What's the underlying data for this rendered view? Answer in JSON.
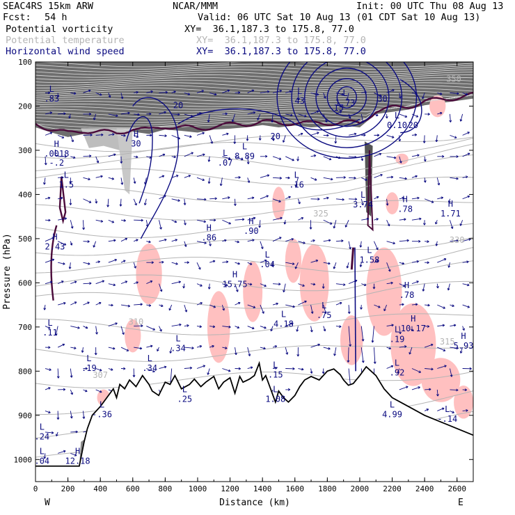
{
  "header": {
    "model": "SEAC4RS 15km ARW",
    "org": "NCAR/MMM",
    "init": "Init: 00 UTC Thu 08 Aug 13",
    "fcst_label": "Fcst:",
    "fcst_value": "54 h",
    "valid": "Valid: 06 UTC Sat 10 Aug 13 (01 CDT Sat 10 Aug 13)"
  },
  "fields": [
    {
      "name": "Potential vorticity",
      "xy": "XY=  36.1,187.3 to 175.8, 77.0",
      "color": "#000000"
    },
    {
      "name": "Potential temperature",
      "xy": "XY=  36.1,187.3 to 175.8, 77.0",
      "color": "#b4b4b4"
    },
    {
      "name": "Horizontal wind speed",
      "xy": "XY=  36.1,187.3 to 175.8, 77.0",
      "color": "#0a0a80"
    }
  ],
  "chart_data": {
    "type": "cross-section",
    "xlabel": "Distance (km)",
    "ylabel": "Pressure (hPa)",
    "xlim": [
      0,
      2700
    ],
    "ylim": [
      1050,
      100
    ],
    "x_ticks": [
      0,
      200,
      400,
      600,
      800,
      1000,
      1200,
      1400,
      1600,
      1800,
      2000,
      2200,
      2400,
      2600
    ],
    "y_ticks": [
      100,
      200,
      300,
      400,
      500,
      600,
      700,
      800,
      900,
      1000
    ],
    "end_labels": {
      "left": "W",
      "right": "E"
    },
    "terrain_profile": [
      [
        0,
        1015
      ],
      [
        270,
        1015
      ],
      [
        300,
        960
      ],
      [
        320,
        930
      ],
      [
        350,
        900
      ],
      [
        400,
        880
      ],
      [
        450,
        855
      ],
      [
        480,
        840
      ],
      [
        500,
        860
      ],
      [
        520,
        830
      ],
      [
        550,
        840
      ],
      [
        580,
        820
      ],
      [
        620,
        835
      ],
      [
        660,
        810
      ],
      [
        700,
        830
      ],
      [
        720,
        845
      ],
      [
        760,
        855
      ],
      [
        800,
        825
      ],
      [
        830,
        830
      ],
      [
        860,
        810
      ],
      [
        900,
        840
      ],
      [
        950,
        830
      ],
      [
        980,
        818
      ],
      [
        1020,
        835
      ],
      [
        1050,
        825
      ],
      [
        1100,
        812
      ],
      [
        1130,
        840
      ],
      [
        1160,
        825
      ],
      [
        1200,
        815
      ],
      [
        1230,
        850
      ],
      [
        1260,
        812
      ],
      [
        1280,
        825
      ],
      [
        1320,
        818
      ],
      [
        1350,
        810
      ],
      [
        1380,
        782
      ],
      [
        1400,
        820
      ],
      [
        1420,
        810
      ],
      [
        1450,
        840
      ],
      [
        1480,
        870
      ],
      [
        1500,
        845
      ],
      [
        1530,
        860
      ],
      [
        1560,
        870
      ],
      [
        1600,
        855
      ],
      [
        1630,
        835
      ],
      [
        1660,
        820
      ],
      [
        1700,
        812
      ],
      [
        1750,
        820
      ],
      [
        1800,
        800
      ],
      [
        1840,
        795
      ],
      [
        1880,
        808
      ],
      [
        1900,
        820
      ],
      [
        1930,
        832
      ],
      [
        1960,
        828
      ],
      [
        2000,
        810
      ],
      [
        2040,
        790
      ],
      [
        2100,
        810
      ],
      [
        2150,
        840
      ],
      [
        2200,
        860
      ],
      [
        2300,
        880
      ],
      [
        2400,
        900
      ],
      [
        2500,
        915
      ],
      [
        2600,
        930
      ],
      [
        2700,
        945
      ]
    ],
    "pv_tropopause": [
      [
        0,
        240
      ],
      [
        100,
        252
      ],
      [
        200,
        262
      ],
      [
        300,
        255
      ],
      [
        400,
        258
      ],
      [
        500,
        262
      ],
      [
        600,
        250
      ],
      [
        700,
        255
      ],
      [
        800,
        245
      ],
      [
        900,
        248
      ],
      [
        1000,
        252
      ],
      [
        1100,
        245
      ],
      [
        1200,
        243
      ],
      [
        1300,
        240
      ],
      [
        1400,
        235
      ],
      [
        1500,
        240
      ],
      [
        1600,
        236
      ],
      [
        1700,
        240
      ],
      [
        1800,
        238
      ],
      [
        1900,
        236
      ],
      [
        2000,
        240
      ],
      [
        2100,
        210
      ],
      [
        2200,
        205
      ],
      [
        2300,
        200
      ],
      [
        2400,
        190
      ],
      [
        2500,
        185
      ],
      [
        2600,
        180
      ],
      [
        2700,
        175
      ]
    ],
    "wind_contour_labels": [
      {
        "x": 880,
        "p": 205,
        "text": "20"
      },
      {
        "x": 1480,
        "p": 275,
        "text": "20"
      },
      {
        "x": 1870,
        "p": 210,
        "text": "15"
      },
      {
        "x": 2140,
        "p": 190,
        "text": "30"
      },
      {
        "x": 2330,
        "p": 250,
        "text": "20"
      }
    ],
    "theta_labels": [
      {
        "x": 400,
        "p": 815,
        "text": "307"
      },
      {
        "x": 620,
        "p": 695,
        "text": "310"
      },
      {
        "x": 1760,
        "p": 450,
        "text": "325"
      },
      {
        "x": 2600,
        "p": 510,
        "text": "330"
      },
      {
        "x": 2540,
        "p": 740,
        "text": "315"
      },
      {
        "x": 2580,
        "p": 145,
        "text": "350"
      }
    ],
    "extrema": [
      {
        "type": "H",
        "x": 130,
        "p": 305,
        "value": ".0018"
      },
      {
        "type": "L",
        "x": 130,
        "p": 325,
        "value": "-.2"
      },
      {
        "type": "L",
        "x": 190,
        "p": 375,
        "value": "1.5"
      },
      {
        "type": "H",
        "x": 120,
        "p": 515,
        "value": "2.43"
      },
      {
        "type": "L",
        "x": 90,
        "p": 710,
        "value": ".11"
      },
      {
        "type": "L",
        "x": 330,
        "p": 790,
        "value": ".19"
      },
      {
        "type": "L",
        "x": 410,
        "p": 895,
        "value": "-.36"
      },
      {
        "type": "H",
        "x": 620,
        "p": 282,
        "value": "30"
      },
      {
        "type": "L",
        "x": 705,
        "p": 790,
        "value": ".34"
      },
      {
        "type": "L",
        "x": 880,
        "p": 745,
        "value": ".34"
      },
      {
        "type": "L",
        "x": 920,
        "p": 860,
        "value": ".25"
      },
      {
        "type": "H",
        "x": 1070,
        "p": 495,
        "value": ".86"
      },
      {
        "type": "L",
        "x": 1170,
        "p": 325,
        "value": ".07"
      },
      {
        "type": "L",
        "x": 1290,
        "p": 310,
        "value": "8.89"
      },
      {
        "type": "H",
        "x": 1330,
        "p": 480,
        "value": ".90"
      },
      {
        "type": "L",
        "x": 1430,
        "p": 555,
        "value": ".04"
      },
      {
        "type": "H",
        "x": 1230,
        "p": 600,
        "value": "15.75"
      },
      {
        "type": "L",
        "x": 1530,
        "p": 690,
        "value": "4.18"
      },
      {
        "type": "L",
        "x": 1480,
        "p": 805,
        "value": ".15"
      },
      {
        "type": "L",
        "x": 1480,
        "p": 860,
        "value": "1.08"
      },
      {
        "type": "L",
        "x": 1610,
        "p": 375,
        "value": ".16"
      },
      {
        "type": "L",
        "x": 1780,
        "p": 670,
        "value": ".75"
      },
      {
        "type": "L",
        "x": 1630,
        "p": 185,
        "value": "43"
      },
      {
        "type": "L",
        "x": 1910,
        "p": 190,
        "value": "1.73"
      },
      {
        "type": "L",
        "x": 2020,
        "p": 420,
        "value": "3.74"
      },
      {
        "type": "L",
        "x": 2060,
        "p": 545,
        "value": "1.58"
      },
      {
        "type": "H",
        "x": 2280,
        "p": 430,
        "value": ".78"
      },
      {
        "type": "L",
        "x": 2230,
        "p": 240,
        "value": "0.10"
      },
      {
        "type": "H",
        "x": 2560,
        "p": 440,
        "value": "1.71"
      },
      {
        "type": "H",
        "x": 2290,
        "p": 625,
        "value": ".78"
      },
      {
        "type": "H",
        "x": 2330,
        "p": 700,
        "value": "10.17"
      },
      {
        "type": "L",
        "x": 2230,
        "p": 725,
        "value": ".19"
      },
      {
        "type": "L",
        "x": 2230,
        "p": 800,
        "value": ".92"
      },
      {
        "type": "L",
        "x": 2200,
        "p": 895,
        "value": "4.99"
      },
      {
        "type": "L",
        "x": 2540,
        "p": 905,
        "value": "-.14"
      },
      {
        "type": "H",
        "x": 2640,
        "p": 740,
        "value": "5.93"
      },
      {
        "type": "L",
        "x": 40,
        "p": 1000,
        "value": ".04"
      },
      {
        "type": "L",
        "x": 40,
        "p": 945,
        "value": ".24"
      },
      {
        "type": "H",
        "x": 260,
        "p": 1000,
        "value": "12.18"
      },
      {
        "type": "L",
        "x": 100,
        "p": 180,
        "value": ".83"
      }
    ],
    "pv_shading_color": "#555555",
    "high_pv_color": "#ffc0c0",
    "wind_contour_color": "#0a0a80",
    "theta_color": "#b4b4b4",
    "pv_contour_color": "#4a0a3a",
    "terrain_color": "#000000"
  }
}
